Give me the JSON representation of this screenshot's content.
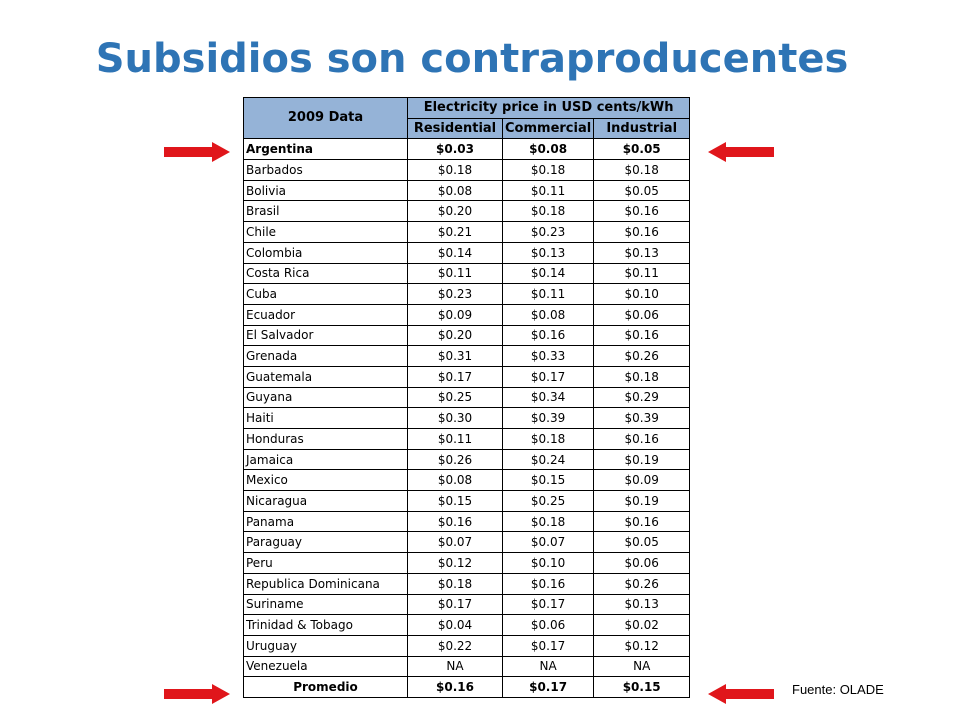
{
  "title": "Subsidios son contraproducentes",
  "table": {
    "header": {
      "year_label": "2009 Data",
      "group_label": "Electricity price in USD cents/kWh",
      "columns": [
        "Residential",
        "Commercial",
        "Industrial"
      ]
    },
    "rows": [
      {
        "country": "Argentina",
        "residential": "$0.03",
        "commercial": "$0.08",
        "industrial": "$0.05"
      },
      {
        "country": "Barbados",
        "residential": "$0.18",
        "commercial": "$0.18",
        "industrial": "$0.18"
      },
      {
        "country": "Bolivia",
        "residential": "$0.08",
        "commercial": "$0.11",
        "industrial": "$0.05"
      },
      {
        "country": "Brasil",
        "residential": "$0.20",
        "commercial": "$0.18",
        "industrial": "$0.16"
      },
      {
        "country": "Chile",
        "residential": "$0.21",
        "commercial": "$0.23",
        "industrial": "$0.16"
      },
      {
        "country": "Colombia",
        "residential": "$0.14",
        "commercial": "$0.13",
        "industrial": "$0.13"
      },
      {
        "country": "Costa Rica",
        "residential": "$0.11",
        "commercial": "$0.14",
        "industrial": "$0.11"
      },
      {
        "country": "Cuba",
        "residential": "$0.23",
        "commercial": "$0.11",
        "industrial": "$0.10"
      },
      {
        "country": "Ecuador",
        "residential": "$0.09",
        "commercial": "$0.08",
        "industrial": "$0.06"
      },
      {
        "country": "El Salvador",
        "residential": "$0.20",
        "commercial": "$0.16",
        "industrial": "$0.16"
      },
      {
        "country": "Grenada",
        "residential": "$0.31",
        "commercial": "$0.33",
        "industrial": "$0.26"
      },
      {
        "country": "Guatemala",
        "residential": "$0.17",
        "commercial": "$0.17",
        "industrial": "$0.18"
      },
      {
        "country": "Guyana",
        "residential": "$0.25",
        "commercial": "$0.34",
        "industrial": "$0.29"
      },
      {
        "country": "Haiti",
        "residential": "$0.30",
        "commercial": "$0.39",
        "industrial": "$0.39"
      },
      {
        "country": "Honduras",
        "residential": "$0.11",
        "commercial": "$0.18",
        "industrial": "$0.16"
      },
      {
        "country": "Jamaica",
        "residential": "$0.26",
        "commercial": "$0.24",
        "industrial": "$0.19"
      },
      {
        "country": "Mexico",
        "residential": "$0.08",
        "commercial": "$0.15",
        "industrial": "$0.09"
      },
      {
        "country": "Nicaragua",
        "residential": "$0.15",
        "commercial": "$0.25",
        "industrial": "$0.19"
      },
      {
        "country": "Panama",
        "residential": "$0.16",
        "commercial": "$0.18",
        "industrial": "$0.16"
      },
      {
        "country": "Paraguay",
        "residential": "$0.07",
        "commercial": "$0.07",
        "industrial": "$0.05"
      },
      {
        "country": "Peru",
        "residential": "$0.12",
        "commercial": "$0.10",
        "industrial": "$0.06"
      },
      {
        "country": "Republica Dominicana",
        "residential": "$0.18",
        "commercial": "$0.16",
        "industrial": "$0.26"
      },
      {
        "country": "Suriname",
        "residential": "$0.17",
        "commercial": "$0.17",
        "industrial": "$0.13"
      },
      {
        "country": "Trinidad & Tobago",
        "residential": "$0.04",
        "commercial": "$0.06",
        "industrial": "$0.02"
      },
      {
        "country": "Uruguay",
        "residential": "$0.22",
        "commercial": "$0.17",
        "industrial": "$0.12"
      },
      {
        "country": "Venezuela",
        "residential": "NA",
        "commercial": "NA",
        "industrial": "NA"
      }
    ],
    "average": {
      "country": "Promedio",
      "residential": "$0.16",
      "commercial": "$0.17",
      "industrial": "$0.15"
    }
  },
  "source": "Fuente: OLADE",
  "arrow_color": "#e0161b",
  "header_fill": "#95b3d7",
  "title_color": "#2e74b5"
}
